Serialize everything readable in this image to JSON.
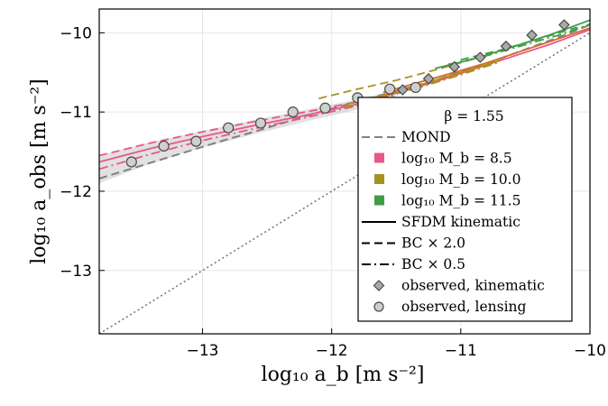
{
  "chart_data": {
    "type": "line",
    "title": "",
    "xlabel": "log₁₀ a_b [m s⁻²]",
    "ylabel": "log₁₀ a_obs [m s⁻²]",
    "xlim": [
      -13.8,
      -10.0
    ],
    "ylim": [
      -13.8,
      -9.7
    ],
    "xticks": [
      -13,
      -12,
      -11,
      -10
    ],
    "yticks": [
      -13,
      -12,
      -11,
      -10
    ],
    "xtick_labels": [
      "−13",
      "−12",
      "−11",
      "−10"
    ],
    "ytick_labels": [
      "−13",
      "−12",
      "−11",
      "−10"
    ],
    "grid": true,
    "legend_position": "bottom-right",
    "legend_title": "β = 1.55",
    "legend": [
      {
        "label": "MOND",
        "kind": "line",
        "style": "dashed",
        "color": "#808080"
      },
      {
        "label": "log₁₀ M_b = 8.5",
        "kind": "patch",
        "color": "#e8578a"
      },
      {
        "label": "log₁₀ M_b = 10.0",
        "kind": "patch",
        "color": "#a8921f"
      },
      {
        "label": "log₁₀ M_b = 11.5",
        "kind": "patch",
        "color": "#3f9e45"
      },
      {
        "label": "SFDM kinematic",
        "kind": "line",
        "style": "solid",
        "color": "#000000"
      },
      {
        "label": "BC × 2.0",
        "kind": "line",
        "style": "dashed",
        "color": "#000000"
      },
      {
        "label": "BC × 0.5",
        "kind": "line",
        "style": "dashdot",
        "color": "#000000"
      },
      {
        "label": "observed, kinematic",
        "kind": "diamond",
        "color": "#aaaaaa"
      },
      {
        "label": "observed, lensing",
        "kind": "circle",
        "color": "#cfcfcf"
      }
    ],
    "one_to_one": {
      "x": [
        -13.8,
        -10.0
      ],
      "y": [
        -13.8,
        -10.0
      ]
    },
    "mond": {
      "x": [
        -13.8,
        -13.6,
        -13.4,
        -13.2,
        -13.0,
        -12.8,
        -12.6,
        -12.4,
        -12.2,
        -12.0,
        -11.8,
        -11.6,
        -11.4,
        -11.2,
        -11.0,
        -10.8,
        -10.6,
        -10.4,
        -10.2,
        -10.0
      ],
      "y": [
        -11.84,
        -11.74,
        -11.64,
        -11.54,
        -11.44,
        -11.34,
        -11.25,
        -11.15,
        -11.05,
        -10.96,
        -10.87,
        -10.78,
        -10.69,
        -10.6,
        -10.49,
        -10.39,
        -10.27,
        -10.15,
        -10.03,
        -9.9
      ]
    },
    "series": [
      {
        "name": "log₁₀ M_b = 8.5",
        "color": "#e8578a",
        "style": "solid",
        "x": [
          -13.8,
          -13.4,
          -13.0,
          -12.6,
          -12.2,
          -11.8,
          -11.5,
          -11.2,
          -10.9,
          -10.6,
          -10.3,
          -10.0
        ],
        "y": [
          -11.63,
          -11.46,
          -11.31,
          -11.17,
          -11.04,
          -10.9,
          -10.76,
          -10.62,
          -10.46,
          -10.3,
          -10.14,
          -9.96
        ]
      },
      {
        "name": "log₁₀ M_b = 8.5 BC × 2.0",
        "color": "#e8578a",
        "style": "dashed",
        "x": [
          -13.8,
          -13.4,
          -13.0,
          -12.6,
          -12.2,
          -11.8,
          -11.5
        ],
        "y": [
          -11.55,
          -11.39,
          -11.25,
          -11.12,
          -11.0,
          -10.87,
          -10.76
        ]
      },
      {
        "name": "log₁₀ M_b = 8.5 BC × 0.5",
        "color": "#e8578a",
        "style": "dashdot",
        "x": [
          -13.8,
          -13.4,
          -13.0,
          -12.6,
          -12.2,
          -11.8,
          -11.5
        ],
        "y": [
          -11.72,
          -11.53,
          -11.36,
          -11.21,
          -11.07,
          -10.92,
          -10.78
        ]
      },
      {
        "name": "log₁₀ M_b = 10.0",
        "color": "#a8921f",
        "style": "solid",
        "x": [
          -11.9,
          -11.6,
          -11.3,
          -11.0,
          -10.7
        ],
        "y": [
          -10.91,
          -10.79,
          -10.65,
          -10.5,
          -10.35
        ]
      },
      {
        "name": "log₁₀ M_b = 10.0 BC × 2.0",
        "color": "#a8921f",
        "style": "dashed",
        "x": [
          -12.1,
          -11.8,
          -11.5,
          -11.2,
          -10.9
        ],
        "y": [
          -10.83,
          -10.71,
          -10.6,
          -10.47,
          -10.33
        ]
      },
      {
        "name": "log₁₀ M_b = 10.0 BC × 0.5",
        "color": "#a8921f",
        "style": "dashdot",
        "x": [
          -11.9,
          -11.6,
          -11.3,
          -11.0,
          -10.7
        ],
        "y": [
          -10.95,
          -10.82,
          -10.68,
          -10.53,
          -10.37
        ]
      },
      {
        "name": "log₁₀ M_b = 11.5",
        "color": "#3f9e45",
        "style": "solid",
        "x": [
          -11.2,
          -10.9,
          -10.6,
          -10.3,
          -10.0
        ],
        "y": [
          -10.45,
          -10.33,
          -10.18,
          -10.02,
          -9.84
        ]
      },
      {
        "name": "log₁₀ M_b = 11.5 BC × 2.0",
        "color": "#3f9e45",
        "style": "dashed",
        "x": [
          -11.0,
          -10.7,
          -10.4,
          -10.1
        ],
        "y": [
          -10.34,
          -10.22,
          -10.08,
          -9.93
        ]
      },
      {
        "name": "log₁₀ M_b = 11.5 BC × 0.5",
        "color": "#3f9e45",
        "style": "dashdot",
        "x": [
          -11.1,
          -10.8,
          -10.5,
          -10.2,
          -10.0
        ],
        "y": [
          -10.4,
          -10.29,
          -10.15,
          -10.01,
          -9.89
        ]
      },
      {
        "name": "SFDM kinematic",
        "color": "#d66a27",
        "style": "solid",
        "x": [
          -11.6,
          -11.2,
          -10.8,
          -10.4,
          -10.0
        ],
        "y": [
          -10.75,
          -10.57,
          -10.38,
          -10.16,
          -9.94
        ]
      }
    ],
    "band": {
      "x": [
        -13.8,
        -13.4,
        -13.0,
        -12.6,
        -12.2,
        -11.8,
        -11.5
      ],
      "upper": [
        -11.55,
        -11.38,
        -11.24,
        -11.1,
        -10.97,
        -10.84,
        -10.72
      ],
      "lower": [
        -11.9,
        -11.65,
        -11.45,
        -11.28,
        -11.12,
        -10.97,
        -10.84
      ]
    },
    "observed_kinematic": {
      "x": [
        -11.45,
        -11.25,
        -11.05,
        -10.85,
        -10.65,
        -10.45,
        -10.2
      ],
      "y": [
        -10.72,
        -10.58,
        -10.43,
        -10.31,
        -10.17,
        -10.03,
        -9.9
      ]
    },
    "observed_lensing": {
      "x": [
        -13.55,
        -13.3,
        -13.05,
        -12.8,
        -12.55,
        -12.3,
        -12.05,
        -11.8,
        -11.55,
        -11.35
      ],
      "y": [
        -11.63,
        -11.43,
        -11.37,
        -11.2,
        -11.14,
        -11.0,
        -10.95,
        -10.82,
        -10.71,
        -10.69
      ]
    }
  }
}
